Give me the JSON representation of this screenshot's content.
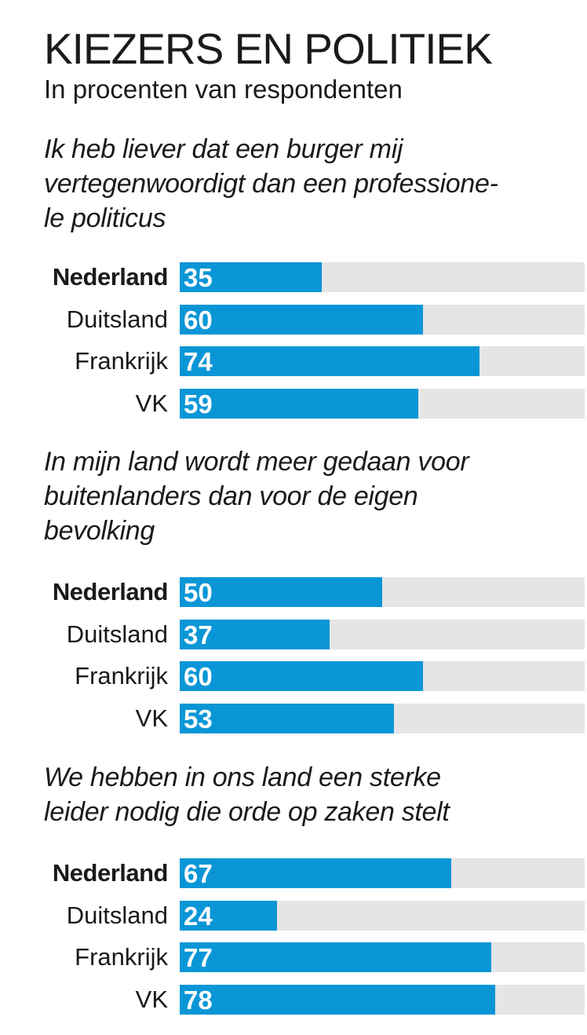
{
  "chart_data": {
    "type": "bar",
    "orientation": "horizontal",
    "title": "KIEZERS EN POLITIEK",
    "subtitle": "In procenten van respondenten",
    "xlim": [
      0,
      100
    ],
    "bar_color": "#0a96d6",
    "track_color": "#e5e5e5",
    "highlight_category": "Nederland",
    "groups": [
      {
        "question_lines": [
          "Ik heb liever dat een burger mij",
          "vertegenwoordigt dan een professione-",
          "le politicus"
        ],
        "categories": [
          "Nederland",
          "Duitsland",
          "Frankrijk",
          "VK"
        ],
        "values": [
          35,
          60,
          74,
          59
        ]
      },
      {
        "question_lines": [
          "In mijn land wordt meer gedaan voor",
          "buitenlanders dan voor de eigen",
          "bevolking"
        ],
        "categories": [
          "Nederland",
          "Duitsland",
          "Frankrijk",
          "VK"
        ],
        "values": [
          50,
          37,
          60,
          53
        ]
      },
      {
        "question_lines": [
          "We hebben in ons land een sterke",
          "leider nodig die orde op zaken stelt"
        ],
        "categories": [
          "Nederland",
          "Duitsland",
          "Frankrijk",
          "VK"
        ],
        "values": [
          67,
          24,
          77,
          78
        ]
      }
    ]
  }
}
